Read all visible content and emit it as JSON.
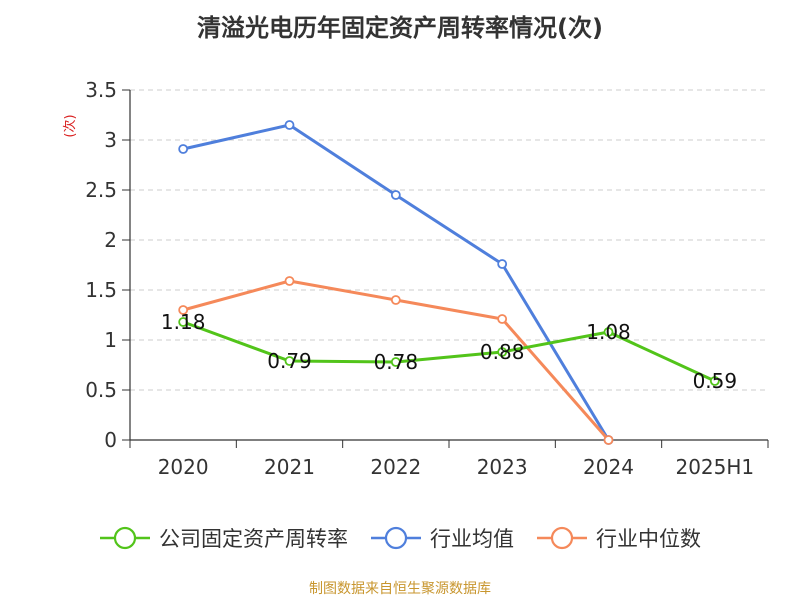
{
  "chart_data": {
    "type": "line",
    "title": "清溢光电历年固定资产周转率情况(次)",
    "ylabel": "(次)",
    "xlabel": "",
    "categories": [
      "2020",
      "2021",
      "2022",
      "2023",
      "2024",
      "2025H1"
    ],
    "ylim": [
      0,
      3.5
    ],
    "yticks": [
      "0",
      "0.5",
      "1",
      "1.5",
      "2",
      "2.5",
      "3",
      "3.5"
    ],
    "grid": true,
    "legend_position": "bottom",
    "series": [
      {
        "name": "公司固定资产周转率",
        "color": "#52c41a",
        "values": [
          1.18,
          0.79,
          0.78,
          0.88,
          1.08,
          0.59
        ],
        "labels": [
          "1.18",
          "0.79",
          "0.78",
          "0.88",
          "1.08",
          "0.59"
        ]
      },
      {
        "name": "行业均值",
        "color": "#4f7fdc",
        "values": [
          2.91,
          3.15,
          2.45,
          1.76,
          0.0,
          null
        ]
      },
      {
        "name": "行业中位数",
        "color": "#f5895a",
        "values": [
          1.3,
          1.59,
          1.4,
          1.21,
          0.0,
          null
        ]
      }
    ]
  },
  "source": "制图数据来自恒生聚源数据库"
}
